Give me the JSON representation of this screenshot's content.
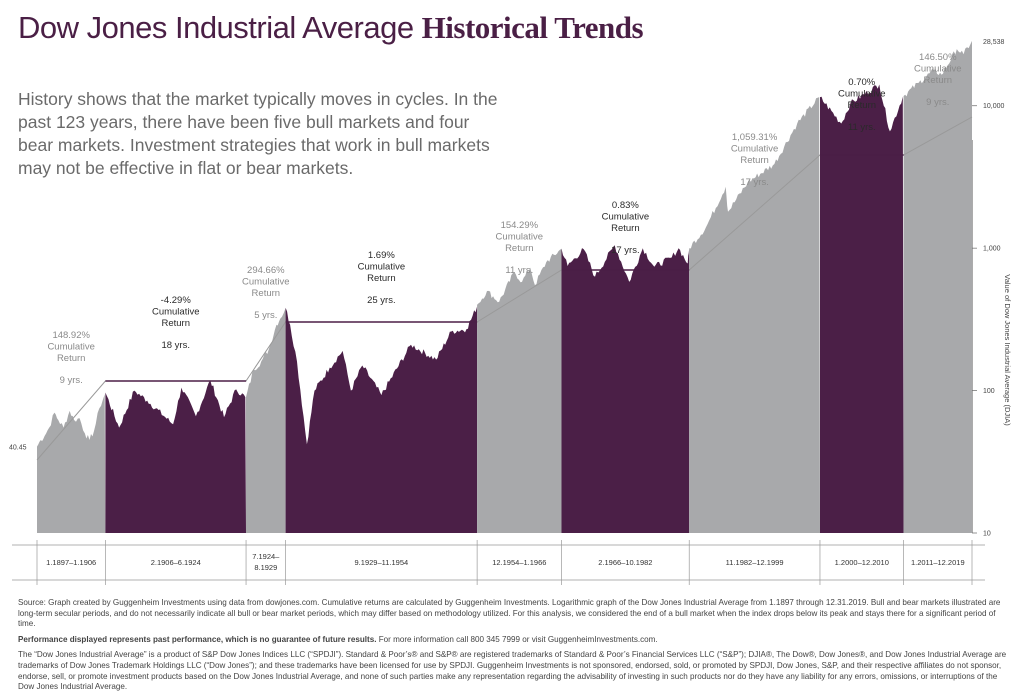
{
  "title": {
    "part1": "Dow Jones Industrial Average ",
    "part2": "Historical Trends"
  },
  "intro": "History shows that the market typically moves in cycles. In the past 123 years, there have been five bull markets and four bear markets. Investment strategies that work in bull markets may not be effective in flat or bear markets.",
  "colors": {
    "bull": "#a8a9ab",
    "bear": "#4b1f47",
    "title": "#4a1f45",
    "line": "#999999"
  },
  "chart_data": {
    "type": "area",
    "ylabel": "Value of Dow Jones Industrial Average (DJIA)",
    "yscale": "log",
    "ylim": [
      10,
      40000
    ],
    "yticks": [
      {
        "value": 10,
        "label": "10"
      },
      {
        "value": 100,
        "label": "100"
      },
      {
        "value": 1000,
        "label": "1,000"
      },
      {
        "value": 10000,
        "label": "10,000"
      }
    ],
    "start_value": {
      "value": 40.45,
      "label": "40.45"
    },
    "end_value": {
      "value": 28538,
      "label": "28,538"
    },
    "x_range": [
      1897.0,
      2020.0
    ],
    "periods": [
      {
        "type": "bull",
        "start": 1897.0,
        "end": 1906.0,
        "range_label": "1.1897–1.1906",
        "return": "148.92%",
        "cum_line1": "Cumulative",
        "cum_line2": "Return",
        "years": "9 yrs.",
        "series": [
          [
            1897.0,
            40.45
          ],
          [
            1897.5,
            45
          ],
          [
            1898.0,
            48
          ],
          [
            1898.6,
            55
          ],
          [
            1899.3,
            70
          ],
          [
            1899.8,
            62
          ],
          [
            1900.5,
            55
          ],
          [
            1901.3,
            72
          ],
          [
            1901.9,
            62
          ],
          [
            1902.6,
            64
          ],
          [
            1903.3,
            50
          ],
          [
            1903.9,
            45
          ],
          [
            1904.5,
            52
          ],
          [
            1905.2,
            75
          ],
          [
            1905.9,
            94
          ]
        ]
      },
      {
        "type": "bear",
        "start": 1906.0,
        "end": 1924.5,
        "range_label": "2.1906–6.1924",
        "return": "-4.29%",
        "cum_line1": "Cumulative",
        "cum_line2": "Return",
        "years": "18 yrs.",
        "series": [
          [
            1906.0,
            97
          ],
          [
            1907.8,
            55
          ],
          [
            1909.8,
            100
          ],
          [
            1911.5,
            85
          ],
          [
            1914.9,
            58
          ],
          [
            1916.0,
            105
          ],
          [
            1917.9,
            66
          ],
          [
            1919.8,
            118
          ],
          [
            1921.6,
            65
          ],
          [
            1923.2,
            102
          ],
          [
            1924.4,
            90
          ]
        ]
      },
      {
        "type": "bull",
        "start": 1924.5,
        "end": 1929.7,
        "range_label": "7.1924–8.1929",
        "return": "294.66%",
        "cum_line1": "Cumulative",
        "cum_line2": "Return",
        "years": "5 yrs.",
        "series": [
          [
            1924.5,
            90
          ],
          [
            1925.5,
            140
          ],
          [
            1926.5,
            160
          ],
          [
            1927.5,
            195
          ],
          [
            1928.5,
            290
          ],
          [
            1929.0,
            320
          ],
          [
            1929.7,
            380
          ]
        ]
      },
      {
        "type": "bear",
        "start": 1929.7,
        "end": 1954.9,
        "range_label": "9.1929–11.1954",
        "return": "1.69%",
        "cum_line1": "Cumulative",
        "cum_line2": "Return",
        "years": "25 yrs.",
        "series": [
          [
            1929.7,
            381
          ],
          [
            1930.3,
            290
          ],
          [
            1931.2,
            160
          ],
          [
            1932.5,
            42
          ],
          [
            1933.5,
            100
          ],
          [
            1935.5,
            145
          ],
          [
            1937.2,
            190
          ],
          [
            1938.3,
            100
          ],
          [
            1939.8,
            150
          ],
          [
            1942.3,
            93
          ],
          [
            1946.2,
            210
          ],
          [
            1949.5,
            165
          ],
          [
            1951.5,
            260
          ],
          [
            1953.5,
            270
          ],
          [
            1954.9,
            390
          ]
        ]
      },
      {
        "type": "bull",
        "start": 1954.9,
        "end": 1966.0,
        "range_label": "12.1954–1.1966",
        "return": "154.29%",
        "cum_line1": "Cumulative",
        "cum_line2": "Return",
        "years": "11 yrs.",
        "series": [
          [
            1954.9,
            400
          ],
          [
            1956.2,
            500
          ],
          [
            1957.8,
            420
          ],
          [
            1959.8,
            680
          ],
          [
            1960.8,
            580
          ],
          [
            1961.9,
            730
          ],
          [
            1962.5,
            550
          ],
          [
            1964.0,
            800
          ],
          [
            1966.0,
            990
          ]
        ]
      },
      {
        "type": "bear",
        "start": 1966.0,
        "end": 1982.8,
        "range_label": "2.1966–10.1982",
        "return": "0.83%",
        "cum_line1": "Cumulative",
        "cum_line2": "Return",
        "years": "17 yrs.",
        "series": [
          [
            1966.0,
            995
          ],
          [
            1966.8,
            750
          ],
          [
            1968.9,
            985
          ],
          [
            1970.4,
            630
          ],
          [
            1973.0,
            1050
          ],
          [
            1974.9,
            580
          ],
          [
            1976.7,
            1000
          ],
          [
            1978.2,
            740
          ],
          [
            1980.5,
            860
          ],
          [
            1981.4,
            1000
          ],
          [
            1982.6,
            780
          ],
          [
            1982.8,
            990
          ]
        ]
      },
      {
        "type": "bull",
        "start": 1982.8,
        "end": 2000.0,
        "range_label": "11.1982–12.1999",
        "return": "1,059.31%",
        "cum_line1": "Cumulative",
        "cum_line2": "Return",
        "years": "17 yrs.",
        "series": [
          [
            1982.8,
            1000
          ],
          [
            1985.0,
            1400
          ],
          [
            1987.6,
            2700
          ],
          [
            1987.9,
            1800
          ],
          [
            1990.5,
            2900
          ],
          [
            1994.0,
            3900
          ],
          [
            1997.0,
            7500
          ],
          [
            1999.9,
            11500
          ]
        ]
      },
      {
        "type": "bear",
        "start": 2000.0,
        "end": 2011.0,
        "range_label": "1.2000–12.2010",
        "return": "0.70%",
        "cum_line1": "Cumulative",
        "cum_line2": "Return",
        "years": "11 yrs.",
        "series": [
          [
            2000.0,
            11500
          ],
          [
            2002.8,
            7500
          ],
          [
            2004.0,
            10400
          ],
          [
            2007.8,
            14100
          ],
          [
            2009.2,
            6600
          ],
          [
            2010.9,
            11600
          ]
        ]
      },
      {
        "type": "bull",
        "start": 2011.0,
        "end": 2020.0,
        "range_label": "1.2011–12.2019",
        "return": "146.50%",
        "cum_line1": "Cumulative",
        "cum_line2": "Return",
        "years": "9 yrs.",
        "series": [
          [
            2011.0,
            11700
          ],
          [
            2013.0,
            14500
          ],
          [
            2015.0,
            17800
          ],
          [
            2016.0,
            16500
          ],
          [
            2018.0,
            25000
          ],
          [
            2018.9,
            23000
          ],
          [
            2020.0,
            28538
          ]
        ]
      }
    ]
  },
  "footer": {
    "source": "Source: Graph created by Guggenheim Investments using data from dowjones.com. Cumulative returns are calculated by Guggenheim Investments. Logarithmic graph of the Dow Jones Industrial Average from 1.1897 through 12.31.2019. Bull and bear markets illustrated are long-term secular periods, and do not necessarily indicate all bull or bear market periods, which may differ based on methodology utilized. For this analysis, we considered the end of a bull market when the index drops below its peak and stays there for a significant period of time.",
    "performance_bold": "Performance displayed represents past performance, which is no guarantee of future results.",
    "performance_rest": " For more information call 800 345 7999 or visit GuggenheimInvestments.com.",
    "trademark": "The “Dow Jones Industrial Average” is a product of S&P Dow Jones Indices LLC (“SPDJI”). Standard & Poor’s® and S&P® are registered trademarks of Standard & Poor’s Financial Services LLC (“S&P”); DJIA®, The Dow®, Dow Jones®, and Dow Jones Industrial Average are trademarks of Dow Jones Trademark Holdings LLC (“Dow Jones”); and these trademarks have been licensed for use by SPDJI. Guggenheim Investments is not sponsored, endorsed, sold, or promoted by SPDJI, Dow Jones, S&P, and their respective affiliates do not sponsor, endorse, sell, or promote investment products based on the Dow Jones Industrial Average, and none of such parties make any representation regarding the advisability of investing in such products nor do they have any liability for any errors, omissions, or interruptions of the Dow Jones Industrial Average."
  }
}
